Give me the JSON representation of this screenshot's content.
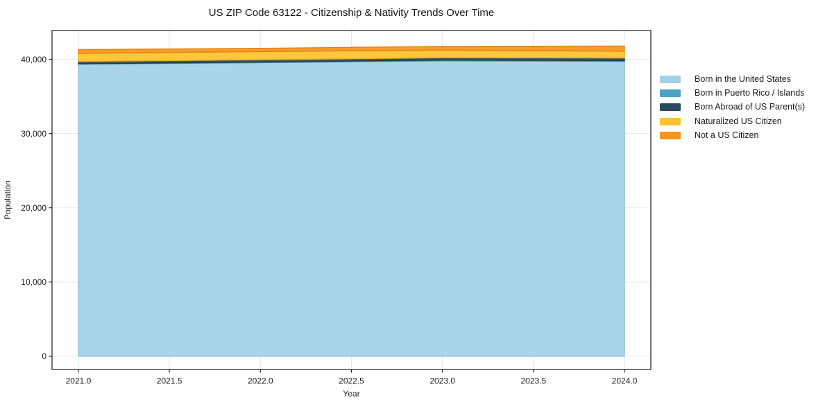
{
  "title": "US ZIP Code 63122 - Citizenship & Nativity Trends Over Time",
  "chart_data": {
    "type": "area",
    "stacked": true,
    "title": "US ZIP Code 63122 - Citizenship & Nativity Trends Over Time",
    "xlabel": "Year",
    "ylabel": "Population",
    "x": [
      2021,
      2022,
      2023,
      2024
    ],
    "series": [
      {
        "name": "Born in the United States",
        "color": "#a3d1e7",
        "edge_color": "#8ec2dc",
        "values": [
          39350,
          39550,
          39790,
          39730
        ]
      },
      {
        "name": "Born in Puerto Rico / Islands",
        "color": "#4aa5c5",
        "edge_color": "#3b94b4",
        "values": [
          60,
          70,
          110,
          85
        ]
      },
      {
        "name": "Born Abroad of US Parent(s)",
        "color": "#2a4a5e",
        "edge_color": "#203c4d",
        "values": [
          310,
          330,
          320,
          375
        ]
      },
      {
        "name": "Naturalized US Citizen",
        "color": "#fcc32e",
        "edge_color": "#f0b116",
        "values": [
          1080,
          1100,
          1030,
          900
        ]
      },
      {
        "name": "Not a US Citizen",
        "color": "#f7941f",
        "edge_color": "#e5810c",
        "values": [
          500,
          430,
          480,
          700
        ]
      }
    ],
    "totals": [
      41300,
      41480,
      41730,
      41790
    ],
    "xticks": [
      2021.0,
      2021.5,
      2022.0,
      2022.5,
      2023.0,
      2023.5,
      2024.0
    ],
    "xtick_labels": [
      "2021.0",
      "2021.5",
      "2022.0",
      "2022.5",
      "2023.0",
      "2023.5",
      "2024.0"
    ],
    "yticks": [
      0,
      10000,
      20000,
      30000,
      40000
    ],
    "ytick_labels": [
      "0",
      "10,000",
      "20,000",
      "30,000",
      "40,000"
    ],
    "xlim": [
      2020.8553,
      2024.1447
    ],
    "ylim": [
      -1780,
      43880
    ],
    "grid": true,
    "grid_color": "#e7e7e7",
    "spine_color": "#1a1a1a",
    "legend_position": "right"
  }
}
